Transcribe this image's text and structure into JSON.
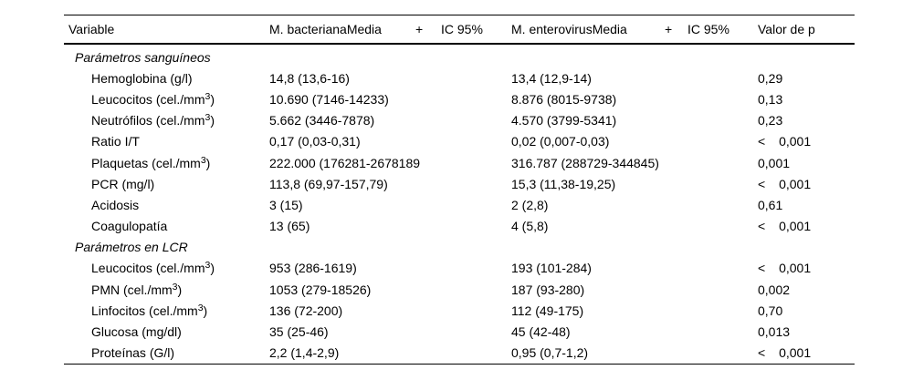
{
  "header": {
    "variable": "Variable",
    "group1_name": "M. bacterianaMedia",
    "group1_plus": "+",
    "group1_ic": "IC 95%",
    "group2_name": "M. enterovirusMedia",
    "group2_plus": "+",
    "group2_ic": "IC 95%",
    "p": "Valor de p"
  },
  "sections": [
    {
      "title": "Parámetros sanguíneos",
      "rows": [
        {
          "variable": "Hemoglobina (g/l)",
          "bacteriana": "14,8 (13,6-16)",
          "enterovirus": "13,4 (12,9-14)",
          "p": "0,29"
        },
        {
          "variable": "Leucocitos (cel./mm³)",
          "bacteriana": "10.690 (7146-14233)",
          "enterovirus": "8.876 (8015-9738)",
          "p": "0,13"
        },
        {
          "variable": "Neutrófilos (cel./mm³)",
          "bacteriana": "5.662 (3446-7878)",
          "enterovirus": "4.570 (3799-5341)",
          "p": "0,23"
        },
        {
          "variable": "Ratio I/T",
          "bacteriana": "0,17 (0,03-0,31)",
          "enterovirus": "0,02 (0,007-0,03)",
          "p": "< 0,001"
        },
        {
          "variable": "Plaquetas (cel./mm³)",
          "bacteriana": "222.000 (176281-2678189",
          "enterovirus": "316.787 (288729-344845)",
          "p": "0,001"
        },
        {
          "variable": "PCR (mg/l)",
          "bacteriana": "113,8 (69,97-157,79)",
          "enterovirus": "15,3 (11,38-19,25)",
          "p": "< 0,001"
        },
        {
          "variable": "Acidosis",
          "bacteriana": "3 (15)",
          "enterovirus": "2 (2,8)",
          "p": "0,61"
        },
        {
          "variable": "Coagulopatía",
          "bacteriana": "13 (65)",
          "enterovirus": "4 (5,8)",
          "p": "< 0,001"
        }
      ]
    },
    {
      "title": "Parámetros en LCR",
      "rows": [
        {
          "variable": "Leucocitos (cel./mm³)",
          "bacteriana": "953 (286-1619)",
          "enterovirus": "193 (101-284)",
          "p": "< 0,001"
        },
        {
          "variable": "PMN (cel./mm³)",
          "bacteriana": "1053 (279-18526)",
          "enterovirus": "187 (93-280)",
          "p": "0,002"
        },
        {
          "variable": "Linfocitos (cel./mm³)",
          "bacteriana": "136 (72-200)",
          "enterovirus": "112 (49-175)",
          "p": "0,70"
        },
        {
          "variable": "Glucosa (mg/dl)",
          "bacteriana": "35 (25-46)",
          "enterovirus": "45 (42-48)",
          "p": "0,013"
        },
        {
          "variable": "Proteínas (G/l)",
          "bacteriana": "2,2 (1,4-2,9)",
          "enterovirus": "0,95 (0,7-1,2)",
          "p": "< 0,001"
        }
      ]
    }
  ]
}
